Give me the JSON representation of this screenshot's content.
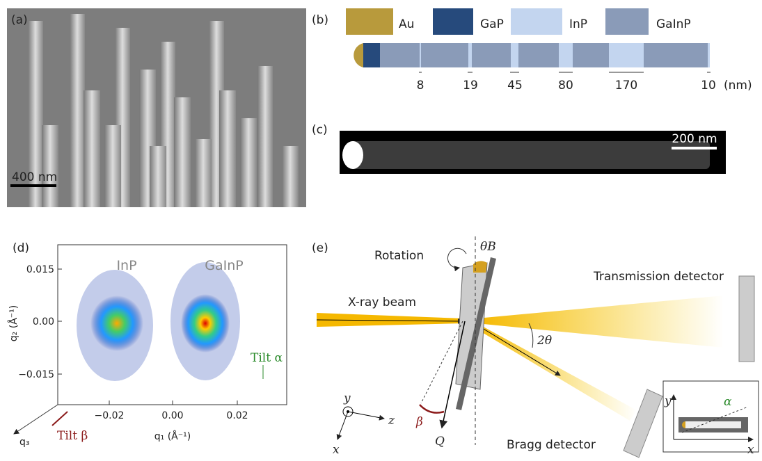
{
  "panels": {
    "a": {
      "label": "(a)",
      "scale_bar": "400 nm"
    },
    "b": {
      "label": "(b)",
      "legend": [
        "Au",
        "GaP",
        "InP",
        "GaInP"
      ],
      "segments": [
        "8",
        "19",
        "45",
        "80",
        "170",
        "10"
      ],
      "unit": "(nm)"
    },
    "c": {
      "label": "(c)",
      "scale_bar": "200 nm"
    },
    "d": {
      "label": "(d)",
      "regions": [
        "InP",
        "GaInP"
      ],
      "yticks": [
        "0.015",
        "0.00",
        "−0.015"
      ],
      "xticks": [
        "−0.02",
        "0.00",
        "0.02"
      ],
      "ylabel": "q₂ (Å⁻¹)",
      "xlabel": "q₁ (Å⁻¹)",
      "zlabel": "q₃",
      "tilt_alpha": "Tilt α",
      "tilt_beta": "Tilt β"
    },
    "e": {
      "label": "(e)",
      "rotation": "Rotation",
      "theta_b": "θB",
      "beam": "X-ray beam",
      "transmission": "Transmission detector",
      "two_theta": "2θ",
      "beta": "β",
      "q": "Q",
      "bragg": "Bragg detector",
      "axes": [
        "y",
        "z",
        "x"
      ],
      "inset_axes": [
        "y",
        "x"
      ],
      "alpha": "α"
    }
  }
}
